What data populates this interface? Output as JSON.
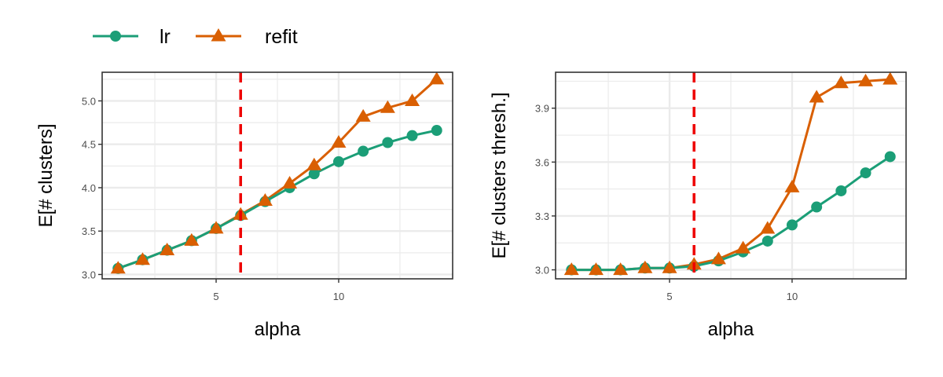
{
  "legend": {
    "placement": "top-left",
    "entries": [
      {
        "name": "lr",
        "color": "#1b9e77",
        "marker": "circle"
      },
      {
        "name": "refit",
        "color": "#d95f02",
        "marker": "triangle"
      }
    ]
  },
  "colors": {
    "lr": "#1b9e77",
    "refit": "#d95f02",
    "reference_line": "#ee0000",
    "grid": "#ebebeb",
    "panel_border": "#333333"
  },
  "chart_data": [
    {
      "type": "line",
      "xlabel": "alpha",
      "ylabel": "E[# clusters]",
      "xlim": [
        0.35,
        14.65
      ],
      "ylim": [
        2.95,
        5.33
      ],
      "xticks": [
        5,
        10
      ],
      "xtick_labels": [
        "5",
        "10"
      ],
      "yticks": [
        3.0,
        3.5,
        4.0,
        4.5,
        5.0
      ],
      "ytick_labels": [
        "3.0",
        "3.5",
        "4.0",
        "4.5",
        "5.0"
      ],
      "grid": true,
      "reference_line": {
        "axis": "x",
        "value": 6,
        "style": "dashed",
        "color": "#ee0000"
      },
      "x": [
        1,
        2,
        3,
        4,
        5,
        6,
        7,
        8,
        9,
        10,
        11,
        12,
        13,
        14
      ],
      "series": [
        {
          "name": "lr",
          "values": [
            3.07,
            3.17,
            3.28,
            3.39,
            3.53,
            3.68,
            3.84,
            4.0,
            4.16,
            4.3,
            4.42,
            4.52,
            4.6,
            4.66
          ]
        },
        {
          "name": "refit",
          "values": [
            3.07,
            3.17,
            3.28,
            3.39,
            3.53,
            3.69,
            3.85,
            4.05,
            4.26,
            4.52,
            4.82,
            4.92,
            5.0,
            5.25
          ]
        }
      ]
    },
    {
      "type": "line",
      "xlabel": "alpha",
      "ylabel": "E[# clusters thresh.]",
      "xlim": [
        0.35,
        14.65
      ],
      "ylim": [
        2.95,
        4.1
      ],
      "xticks": [
        5,
        10
      ],
      "xtick_labels": [
        "5",
        "10"
      ],
      "yticks": [
        3.0,
        3.3,
        3.6,
        3.9
      ],
      "ytick_labels": [
        "3.0",
        "3.3",
        "3.6",
        "3.9"
      ],
      "grid": true,
      "reference_line": {
        "axis": "x",
        "value": 6,
        "style": "dashed",
        "color": "#ee0000"
      },
      "x": [
        1,
        2,
        3,
        4,
        5,
        6,
        7,
        8,
        9,
        10,
        11,
        12,
        13,
        14
      ],
      "series": [
        {
          "name": "lr",
          "values": [
            3.0,
            3.0,
            3.0,
            3.01,
            3.01,
            3.02,
            3.05,
            3.1,
            3.16,
            3.25,
            3.35,
            3.44,
            3.54,
            3.63
          ]
        },
        {
          "name": "refit",
          "values": [
            3.0,
            3.0,
            3.0,
            3.01,
            3.01,
            3.03,
            3.06,
            3.12,
            3.23,
            3.46,
            3.96,
            4.04,
            4.05,
            4.06
          ]
        }
      ]
    }
  ]
}
